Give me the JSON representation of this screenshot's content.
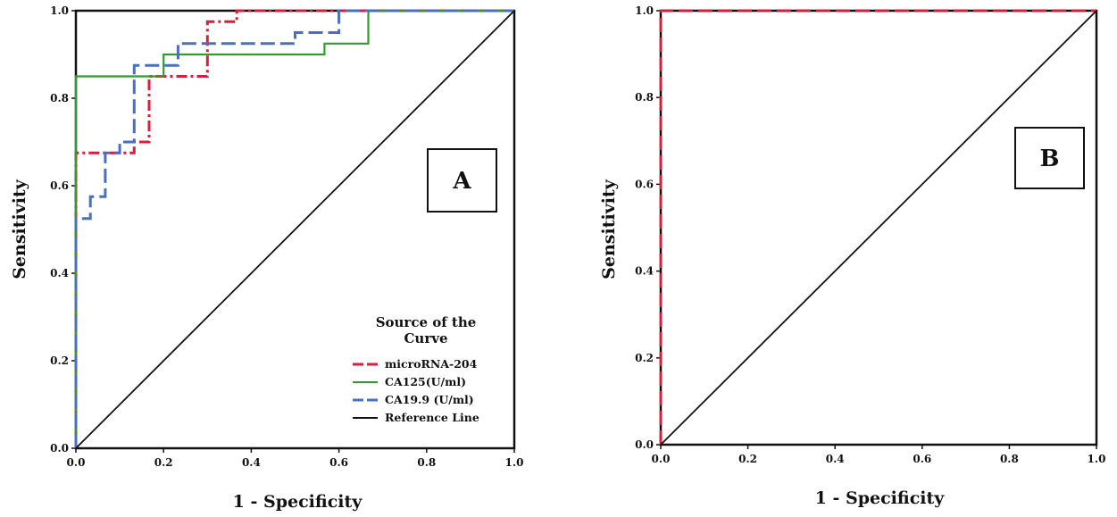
{
  "chart_data": [
    {
      "type": "line",
      "panel_label": "A",
      "xlabel": "1 - Specificity",
      "ylabel": "Sensitivity",
      "xlim": [
        0,
        1
      ],
      "ylim": [
        0,
        1
      ],
      "xticks": [
        "0.0",
        "0.2",
        "0.4",
        "0.6",
        "0.8",
        "1.0"
      ],
      "yticks": [
        "0.0",
        "0.2",
        "0.4",
        "0.6",
        "0.8",
        "1.0"
      ],
      "legend_title": "Source of the Curve",
      "legend_position": "bottom-right",
      "series": [
        {
          "name": "microRNA-204",
          "color": "#d81e3c",
          "style": "dash-dot",
          "x": [
            0,
            0,
            0.0,
            0.133,
            0.133,
            0.167,
            0.167,
            0.3,
            0.3,
            0.367,
            0.367,
            0.4,
            0.4,
            1.0
          ],
          "y": [
            0,
            0.675,
            0.675,
            0.675,
            0.7,
            0.7,
            0.85,
            0.85,
            0.975,
            0.975,
            1.0,
            1.0,
            1.0,
            1.0
          ]
        },
        {
          "name": "CA125(U/ml)",
          "color": "#2f9c2f",
          "style": "solid",
          "x": [
            0,
            0,
            0.2,
            0.2,
            0.567,
            0.567,
            0.667,
            0.667,
            1.0
          ],
          "y": [
            0,
            0.85,
            0.85,
            0.9,
            0.9,
            0.925,
            0.925,
            1.0,
            1.0
          ]
        },
        {
          "name": "CA19.9 (U/ml)",
          "color": "#4a6fc0",
          "style": "dashed",
          "x": [
            0,
            0,
            0.033,
            0.033,
            0.067,
            0.067,
            0.1,
            0.1,
            0.133,
            0.133,
            0.233,
            0.233,
            0.5,
            0.5,
            0.6,
            0.6,
            1.0
          ],
          "y": [
            0,
            0.525,
            0.525,
            0.575,
            0.575,
            0.675,
            0.675,
            0.7,
            0.7,
            0.875,
            0.875,
            0.925,
            0.925,
            0.95,
            0.95,
            1.0,
            1.0
          ]
        },
        {
          "name": "Reference Line",
          "color": "#111111",
          "style": "solid",
          "x": [
            0,
            1
          ],
          "y": [
            0,
            1
          ]
        }
      ]
    },
    {
      "type": "line",
      "panel_label": "B",
      "xlabel": "1 - Specificity",
      "ylabel": "Sensitivity",
      "xlim": [
        0,
        1
      ],
      "ylim": [
        0,
        1
      ],
      "xticks": [
        "0.0",
        "0.2",
        "0.4",
        "0.6",
        "0.8",
        "1.0"
      ],
      "yticks": [
        "0.0",
        "0.2",
        "0.4",
        "0.6",
        "0.8",
        "1.0"
      ],
      "series": [
        {
          "color": "#d81e3c",
          "style": "dashed",
          "x": [
            0,
            0,
            1
          ],
          "y": [
            0,
            1,
            1
          ]
        },
        {
          "color": "#111111",
          "style": "solid",
          "x": [
            0,
            1
          ],
          "y": [
            0,
            1
          ]
        }
      ]
    }
  ]
}
